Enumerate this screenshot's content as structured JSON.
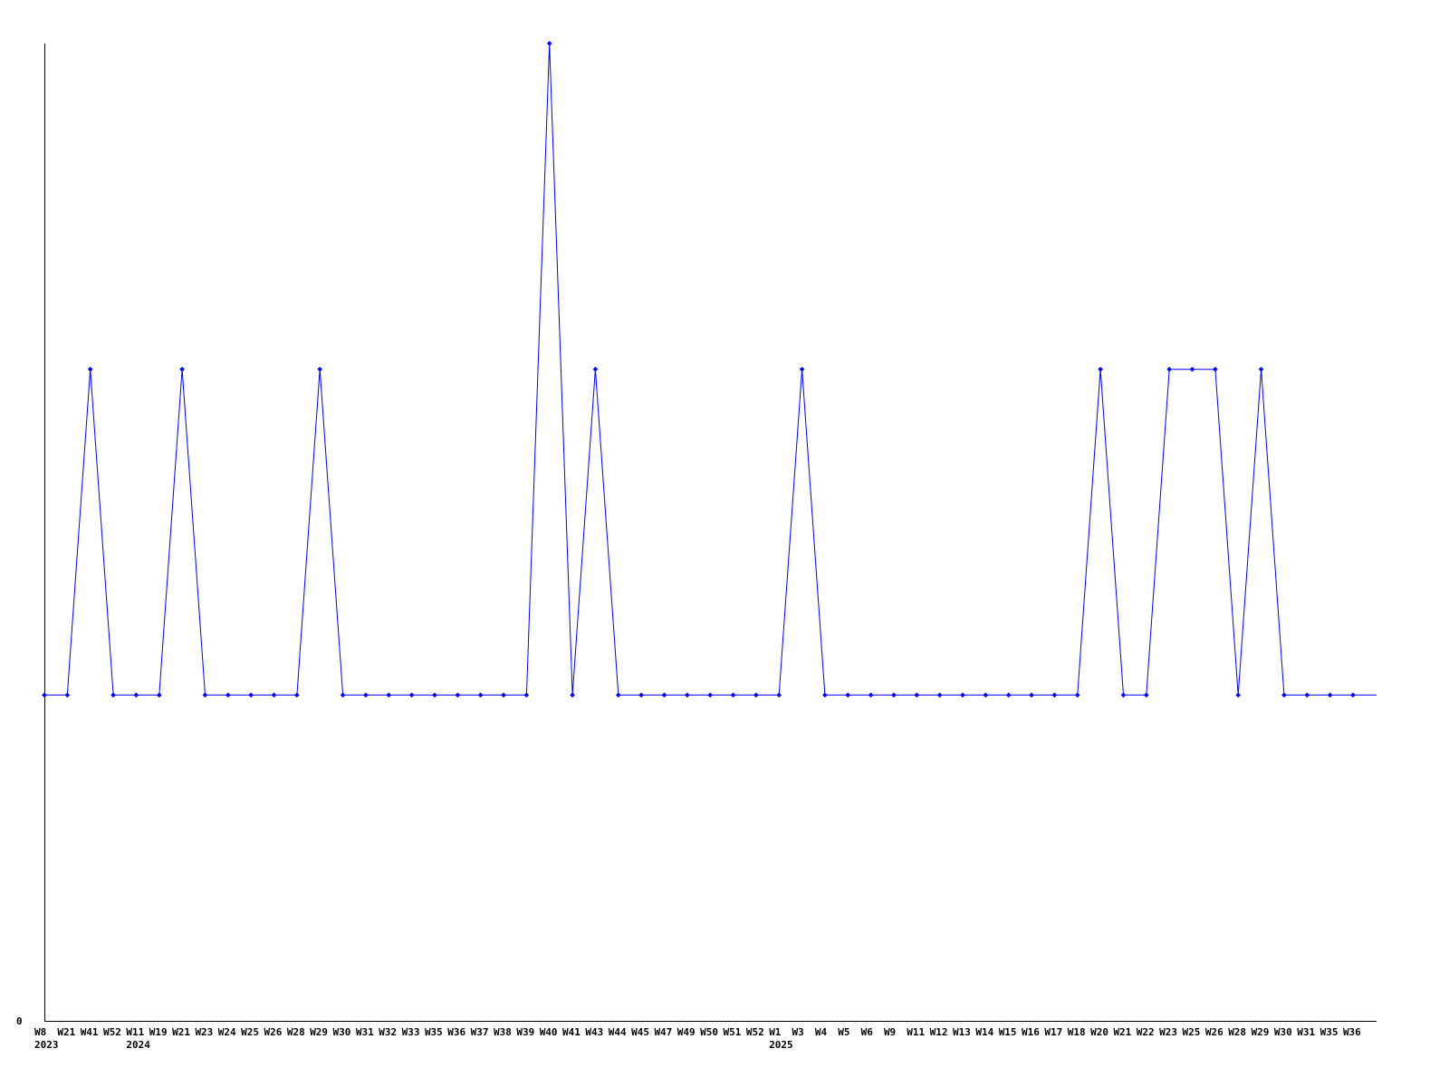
{
  "chart_data": {
    "type": "line",
    "title": "",
    "xlabel": "",
    "ylabel": "",
    "ylim": [
      0,
      3
    ],
    "y_tick_labels": [
      "0"
    ],
    "grid": false,
    "line_color": "#0000ff",
    "categories": [
      "W8",
      "W21",
      "W41",
      "W52",
      "W11",
      "W19",
      "W21",
      "W23",
      "W24",
      "W25",
      "W26",
      "W28",
      "W29",
      "W30",
      "W31",
      "W32",
      "W33",
      "W35",
      "W36",
      "W37",
      "W38",
      "W39",
      "W40",
      "W41",
      "W43",
      "W44",
      "W45",
      "W47",
      "W49",
      "W50",
      "W51",
      "W52",
      "W1",
      "W3",
      "W4",
      "W5",
      "W6",
      "W9",
      "W11",
      "W12",
      "W13",
      "W14",
      "W15",
      "W16",
      "W17",
      "W18",
      "W20",
      "W21",
      "W22",
      "W23",
      "W25",
      "W26",
      "W28",
      "W29",
      "W30",
      "W31",
      "W35",
      "W36"
    ],
    "year_labels": [
      {
        "index": 0,
        "label": "2023"
      },
      {
        "index": 4,
        "label": "2024"
      },
      {
        "index": 32,
        "label": "2025"
      }
    ],
    "series": [
      {
        "values": [
          1,
          1,
          2,
          1,
          1,
          1,
          2,
          1,
          1,
          1,
          1,
          1,
          2,
          1,
          1,
          1,
          1,
          1,
          1,
          1,
          1,
          1,
          3,
          1,
          2,
          1,
          1,
          1,
          1,
          1,
          1,
          1,
          1,
          2,
          1,
          1,
          1,
          1,
          1,
          1,
          1,
          1,
          1,
          1,
          1,
          1,
          2,
          1,
          1,
          2,
          2,
          2,
          1,
          2,
          1,
          1,
          1,
          1
        ]
      }
    ]
  }
}
